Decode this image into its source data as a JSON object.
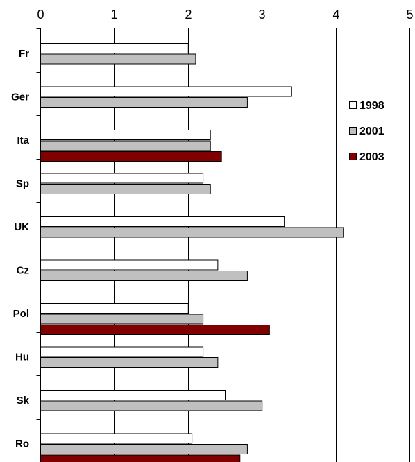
{
  "chart_data": {
    "type": "bar",
    "orientation": "horizontal",
    "categories": [
      "Fr",
      "Ger",
      "Ita",
      "Sp",
      "UK",
      "Cz",
      "Pol",
      "Hu",
      "Sk",
      "Ro"
    ],
    "series": [
      {
        "name": "1998",
        "color": "#ffffff",
        "values": [
          2.0,
          3.4,
          2.3,
          2.2,
          3.3,
          2.4,
          2.0,
          2.2,
          2.5,
          2.05
        ]
      },
      {
        "name": "2001",
        "color": "#c0c0c0",
        "values": [
          2.1,
          2.8,
          2.3,
          2.3,
          4.1,
          2.8,
          2.2,
          2.4,
          3.0,
          2.8
        ]
      },
      {
        "name": "2003",
        "color": "#800000",
        "values": [
          null,
          null,
          2.45,
          null,
          null,
          null,
          3.1,
          null,
          null,
          2.7
        ]
      }
    ],
    "xlim": [
      0,
      5
    ],
    "x_ticks": [
      "0",
      "1",
      "2",
      "3",
      "4",
      "5"
    ],
    "x_axis_position": "top",
    "grid": "vertical",
    "legend_position": "right",
    "title": "",
    "xlabel": "",
    "ylabel": ""
  }
}
